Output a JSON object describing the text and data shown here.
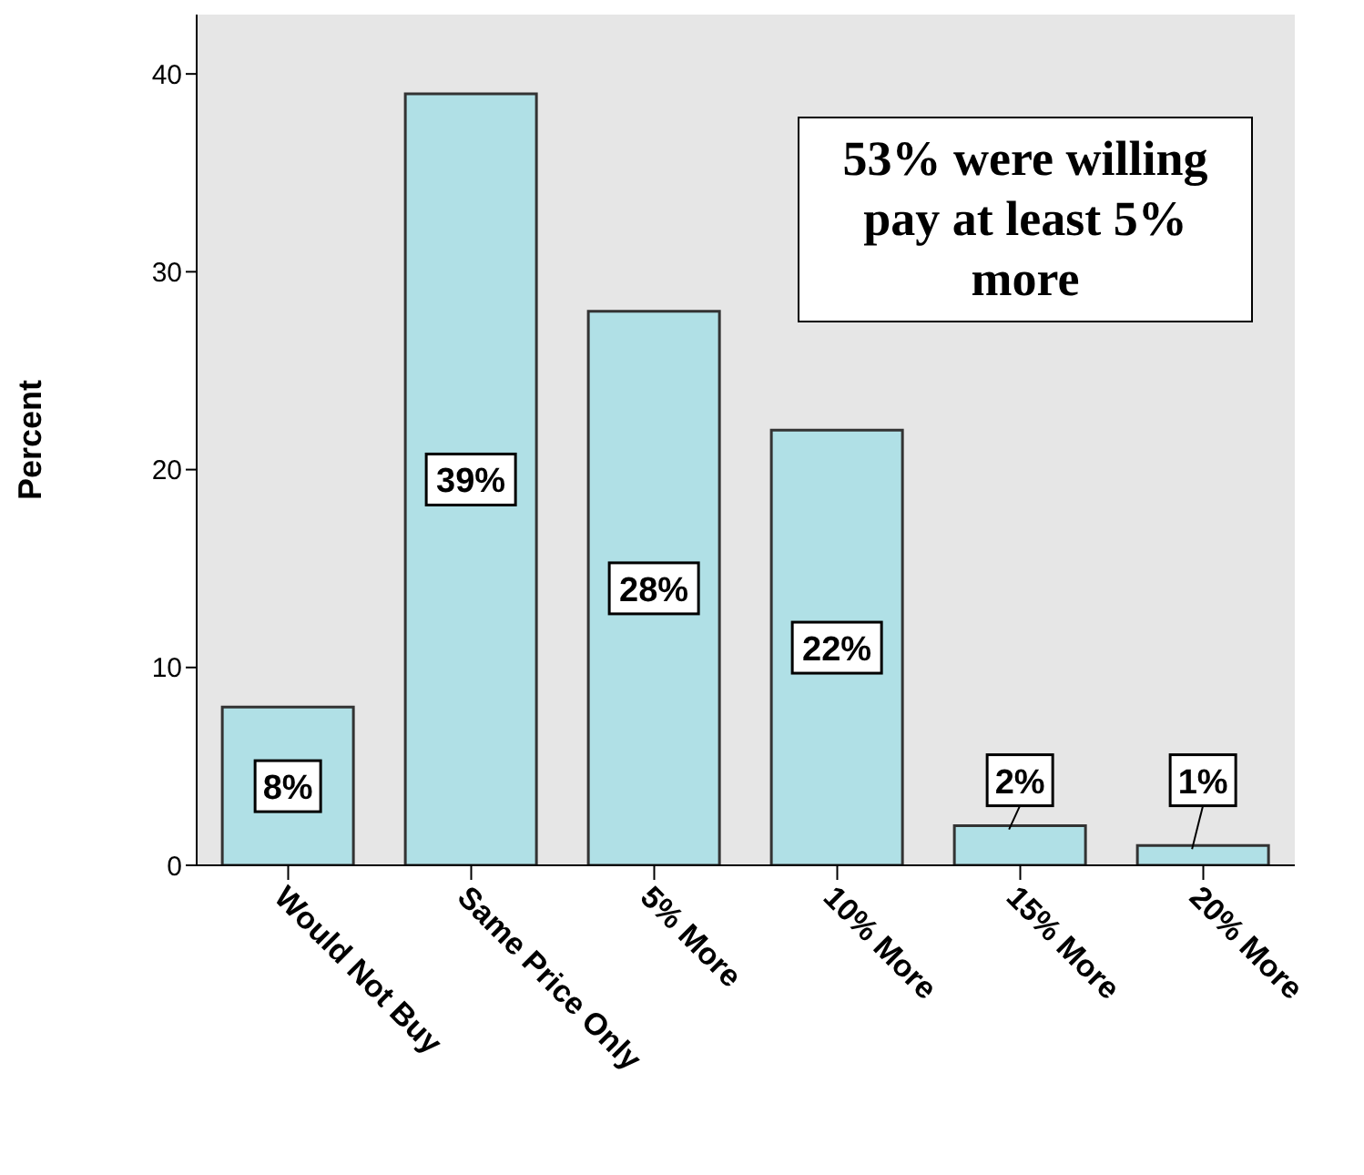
{
  "chart_data": {
    "type": "bar",
    "ylabel": "Percent",
    "categories": [
      "Would Not Buy",
      "Same Price Only",
      "5% More",
      "10% More",
      "15% More",
      "20% More"
    ],
    "values": [
      8,
      39,
      28,
      22,
      2,
      1
    ],
    "value_labels": [
      "8%",
      "39%",
      "28%",
      "22%",
      "2%",
      "1%"
    ],
    "color": "#b0e0e6",
    "ylim": [
      0,
      43
    ],
    "yticks": [
      0,
      10,
      20,
      30,
      40
    ],
    "grid": false,
    "legend": false,
    "annotations": [
      "53% were willing pay at least 5% more"
    ]
  }
}
